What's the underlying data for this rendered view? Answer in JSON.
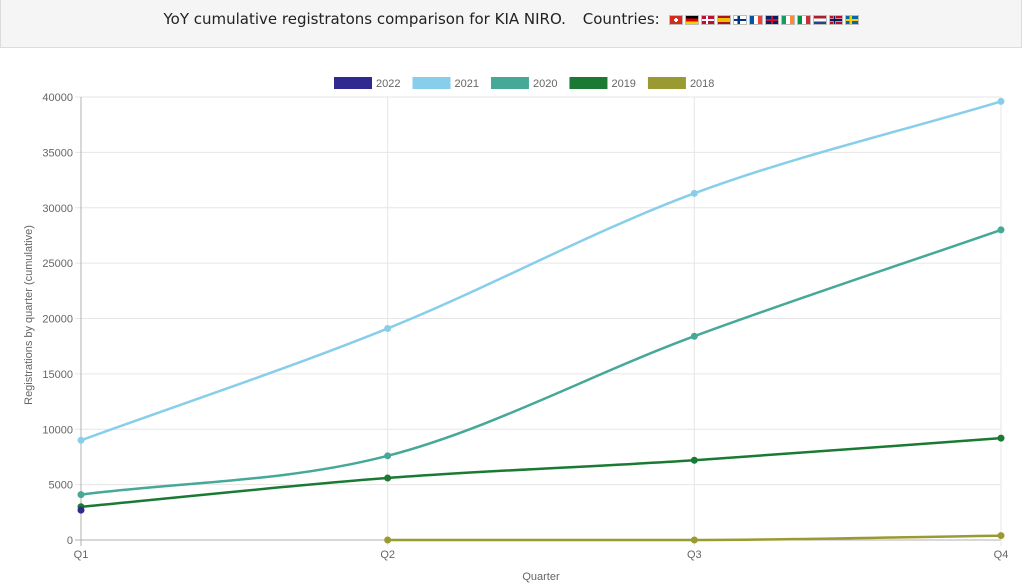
{
  "header": {
    "title": "YoY cumulative registratons comparison for KIA NIRO.",
    "countries_label": "Countries:",
    "flags": [
      "switzerland-flag-icon",
      "germany-flag-icon",
      "denmark-flag-icon",
      "spain-flag-icon",
      "finland-flag-icon",
      "france-flag-icon",
      "uk-flag-icon",
      "ireland-flag-icon",
      "italy-flag-icon",
      "netherlands-flag-icon",
      "norway-flag-icon",
      "sweden-flag-icon"
    ]
  },
  "chart_data": {
    "type": "line",
    "categories": [
      "Q1",
      "Q2",
      "Q3",
      "Q4"
    ],
    "xlabel": "Quarter",
    "ylabel": "Registrations by quarter (cumulative)",
    "ylim": [
      0,
      40000
    ],
    "yticks": [
      0,
      5000,
      10000,
      15000,
      20000,
      25000,
      30000,
      35000,
      40000
    ],
    "grid": true,
    "legend_position": "top-center",
    "series": [
      {
        "name": "2022",
        "color": "#2e2a8f",
        "values": [
          2700,
          null,
          null,
          null
        ]
      },
      {
        "name": "2021",
        "color": "#87ceeb",
        "values": [
          9000,
          19100,
          31300,
          39600
        ]
      },
      {
        "name": "2020",
        "color": "#46a897",
        "values": [
          4100,
          7600,
          18400,
          28000
        ]
      },
      {
        "name": "2019",
        "color": "#1a7a33",
        "values": [
          3000,
          5600,
          7200,
          9200
        ]
      },
      {
        "name": "2018",
        "color": "#9a9a33",
        "values": [
          null,
          0,
          0,
          400
        ]
      }
    ]
  }
}
